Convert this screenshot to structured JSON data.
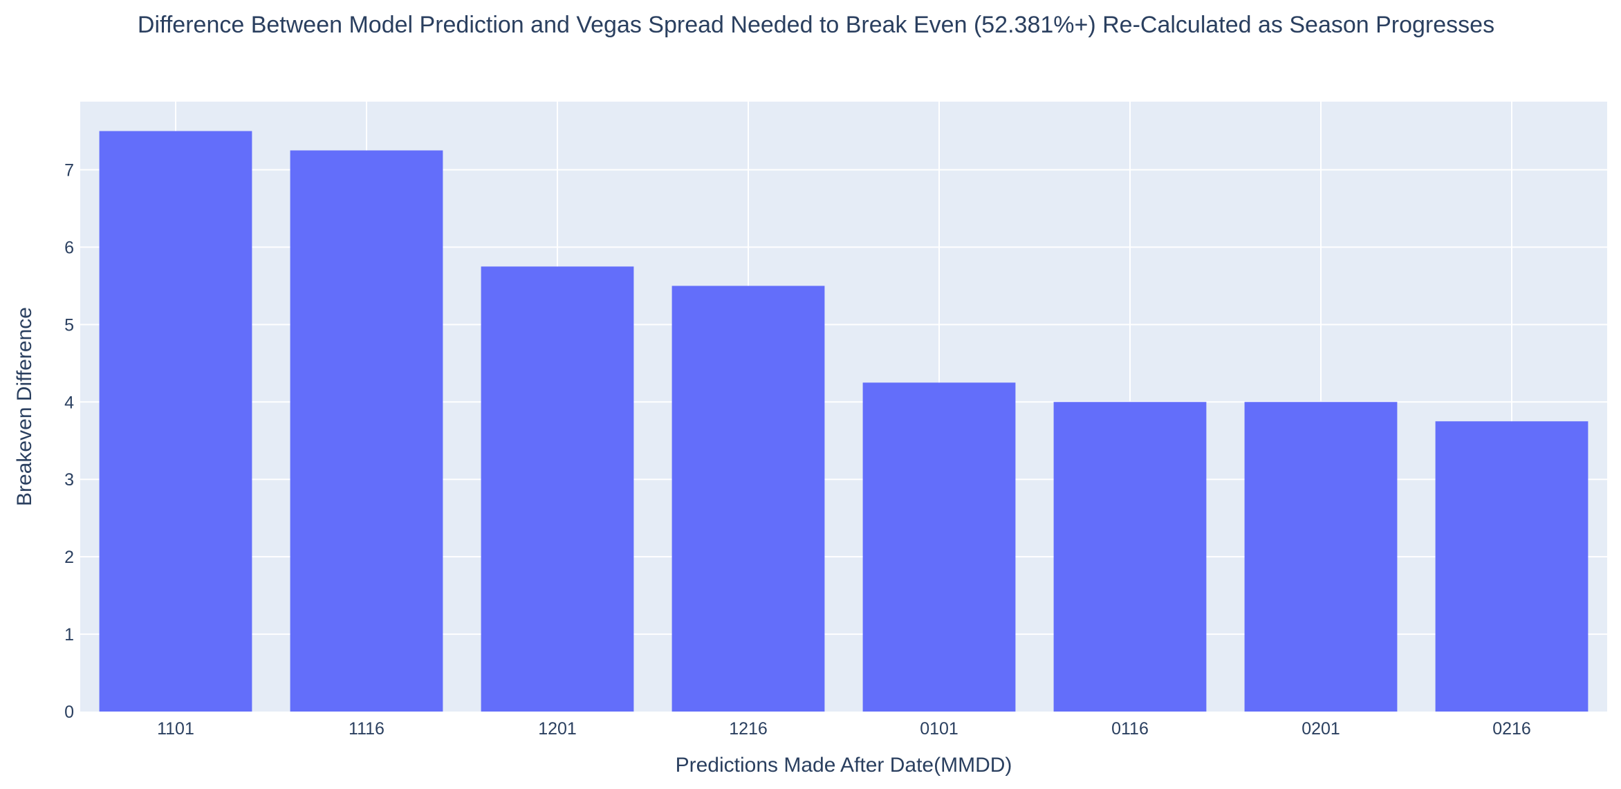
{
  "chart_data": {
    "type": "bar",
    "title": "Difference Between Model Prediction and Vegas Spread Needed to Break Even (52.381%+) Re-Calculated as Season Progresses",
    "xlabel": "Predictions Made After Date(MMDD)",
    "ylabel": "Breakeven Difference",
    "categories": [
      "1101",
      "1116",
      "1201",
      "1216",
      "0101",
      "0116",
      "0201",
      "0216"
    ],
    "values": [
      7.5,
      7.25,
      5.75,
      5.5,
      4.25,
      4.0,
      4.0,
      3.75
    ],
    "ylim": [
      0,
      7.88
    ],
    "yticks": [
      0,
      1,
      2,
      3,
      4,
      5,
      6,
      7
    ],
    "grid": true,
    "legend": "none",
    "colors": {
      "bar": "#636efa",
      "plot_background": "#e5ecf6",
      "grid": "#ffffff",
      "text": "#2a3f5f"
    }
  }
}
